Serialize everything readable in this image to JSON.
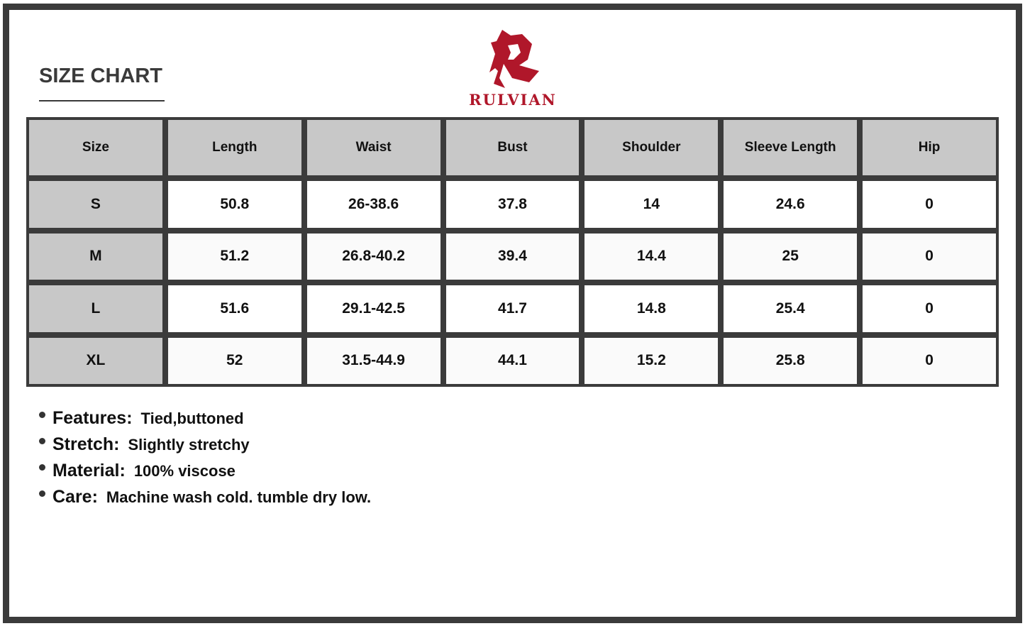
{
  "title": "SIZE CHART",
  "brand": {
    "name": "RULVIAN",
    "color": "#b0172a",
    "logo_icon": "stylized-R-logo"
  },
  "table": {
    "headers": [
      "Size",
      "Length",
      "Waist",
      "Bust",
      "Shoulder",
      "Sleeve Length",
      "Hip"
    ],
    "rows": [
      [
        "S",
        "50.8",
        "26-38.6",
        "37.8",
        "14",
        "24.6",
        "0"
      ],
      [
        "M",
        "51.2",
        "26.8-40.2",
        "39.4",
        "14.4",
        "25",
        "0"
      ],
      [
        "L",
        "51.6",
        "29.1-42.5",
        "41.7",
        "14.8",
        "25.4",
        "0"
      ],
      [
        "XL",
        "52",
        "31.5-44.9",
        "44.1",
        "15.2",
        "25.8",
        "0"
      ]
    ]
  },
  "features": [
    {
      "label": "Features:",
      "value": "Tied,buttoned"
    },
    {
      "label": "Stretch:",
      "value": "Slightly stretchy"
    },
    {
      "label": "Material:",
      "value": "100% viscose"
    },
    {
      "label": "Care:",
      "value": "Machine wash cold. tumble dry low."
    }
  ]
}
